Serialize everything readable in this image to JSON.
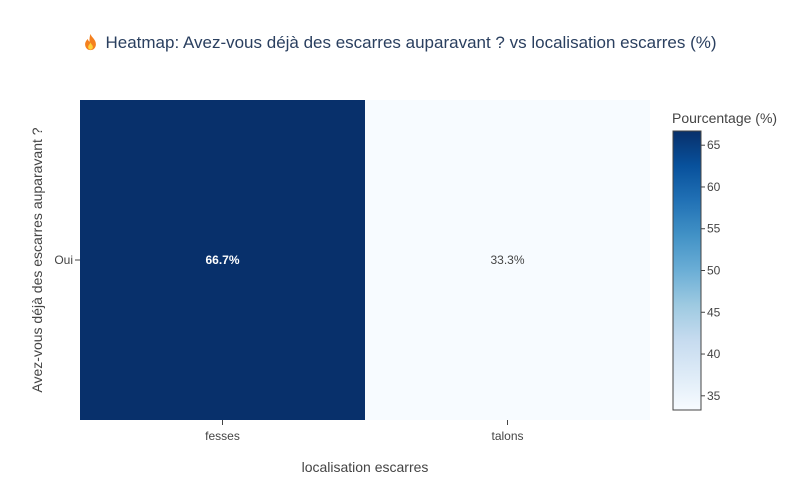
{
  "title": "Heatmap: Avez-vous déjà des escarres auparavant ? vs localisation escarres (%)",
  "title_icon": "fire-icon",
  "chart_data": {
    "type": "heatmap",
    "title": "Heatmap: Avez-vous déjà des escarres auparavant ? vs localisation escarres (%)",
    "xlabel": "localisation escarres",
    "ylabel": "Avez-vous déjà des escarres auparavant ?",
    "x_categories": [
      "fesses",
      "talons"
    ],
    "y_categories": [
      "Oui"
    ],
    "z": [
      [
        66.7,
        33.3
      ]
    ],
    "cell_labels": [
      [
        "66.7%",
        "33.3%"
      ]
    ],
    "colorbar": {
      "title": "Pourcentage (%)",
      "min": 33.3,
      "max": 66.7,
      "ticks": [
        35,
        40,
        45,
        50,
        55,
        60,
        65
      ],
      "colorscale": [
        "#f7fbff",
        "#deebf7",
        "#c6dbef",
        "#9ecae1",
        "#6baed6",
        "#4292c6",
        "#2171b5",
        "#08519c",
        "#08306b"
      ]
    }
  }
}
